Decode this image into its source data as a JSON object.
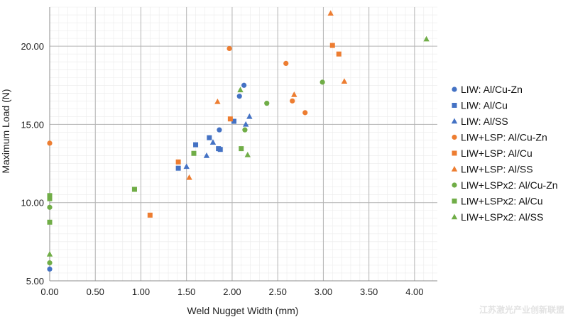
{
  "chart_data": {
    "type": "scatter",
    "title": "",
    "xlabel": "Weld Nugget Width (mm)",
    "ylabel": "Maximum Load (N)",
    "xlim": [
      0.0,
      4.25
    ],
    "ylim": [
      5.0,
      22.5
    ],
    "x_ticks": [
      "0.00",
      "0.50",
      "1.00",
      "1.50",
      "2.00",
      "2.50",
      "3.00",
      "3.50",
      "4.00"
    ],
    "y_ticks": [
      "5.00",
      "10.00",
      "15.00",
      "20.00"
    ],
    "grid": "major and minor",
    "legend_position": "right",
    "series": [
      {
        "name": "LIW: Al/Cu-Zn",
        "marker": "circle",
        "color": "#4472c4",
        "points": [
          [
            0.0,
            5.75
          ],
          [
            1.86,
            14.65
          ],
          [
            2.08,
            16.8
          ],
          [
            2.13,
            17.5
          ]
        ]
      },
      {
        "name": "LIW: Al/Cu",
        "marker": "square",
        "color": "#4472c4",
        "points": [
          [
            1.41,
            12.2
          ],
          [
            1.6,
            13.7
          ],
          [
            1.75,
            14.15
          ],
          [
            1.85,
            13.45
          ],
          [
            1.87,
            13.4
          ],
          [
            2.02,
            15.2
          ]
        ]
      },
      {
        "name": "LIW: Al/SS",
        "marker": "triangle",
        "color": "#4472c4",
        "points": [
          [
            1.5,
            12.3
          ],
          [
            1.72,
            13.0
          ],
          [
            1.79,
            13.85
          ],
          [
            2.15,
            15.0
          ],
          [
            2.19,
            15.5
          ]
        ]
      },
      {
        "name": "LIW+LSP: Al/Cu-Zn",
        "marker": "circle",
        "color": "#ed7d31",
        "points": [
          [
            0.0,
            13.8
          ],
          [
            1.97,
            19.85
          ],
          [
            2.59,
            18.9
          ],
          [
            2.66,
            16.5
          ],
          [
            2.8,
            15.75
          ]
        ]
      },
      {
        "name": "LIW+LSP: Al/Cu",
        "marker": "square",
        "color": "#ed7d31",
        "points": [
          [
            1.1,
            9.2
          ],
          [
            1.41,
            12.6
          ],
          [
            1.98,
            15.35
          ],
          [
            3.1,
            20.05
          ],
          [
            3.17,
            19.5
          ]
        ]
      },
      {
        "name": "LIW+LSP: Al/SS",
        "marker": "triangle",
        "color": "#ed7d31",
        "points": [
          [
            1.53,
            11.6
          ],
          [
            1.84,
            16.45
          ],
          [
            2.68,
            16.9
          ],
          [
            3.08,
            22.1
          ],
          [
            3.23,
            17.75
          ]
        ]
      },
      {
        "name": "LIW+LSP x2: Al/Cu-Zn",
        "marker": "circle",
        "color": "#70ad47",
        "points": [
          [
            0.0,
            6.15
          ],
          [
            0.0,
            9.7
          ],
          [
            2.14,
            14.65
          ],
          [
            2.38,
            16.35
          ],
          [
            2.99,
            17.7
          ]
        ]
      },
      {
        "name": "LIW+LSP x2: Al/Cu",
        "marker": "square",
        "color": "#70ad47",
        "points": [
          [
            0.0,
            8.75
          ],
          [
            0.0,
            10.25
          ],
          [
            0.0,
            10.45
          ],
          [
            0.93,
            10.85
          ],
          [
            1.58,
            13.15
          ],
          [
            2.1,
            13.45
          ]
        ]
      },
      {
        "name": "LIW+LSP x2: Al/SS",
        "marker": "triangle",
        "color": "#70ad47",
        "points": [
          [
            0.0,
            6.7
          ],
          [
            2.09,
            17.2
          ],
          [
            2.17,
            13.05
          ],
          [
            4.13,
            20.45
          ]
        ]
      }
    ]
  },
  "legend": {
    "entries": [
      "LIW: Al/Cu-Zn",
      "LIW: Al/Cu",
      "LIW: Al/SS",
      "LIW+LSP: Al/Cu-Zn",
      "LIW+LSP: Al/Cu",
      "LIW+LSP: Al/SS",
      "LIW+LSPx2: Al/Cu-Zn",
      "LIW+LSPx2: Al/Cu",
      "LIW+LSPx2: Al/SS"
    ]
  },
  "watermark": {
    "text": "江苏激光产业创新联盟"
  }
}
